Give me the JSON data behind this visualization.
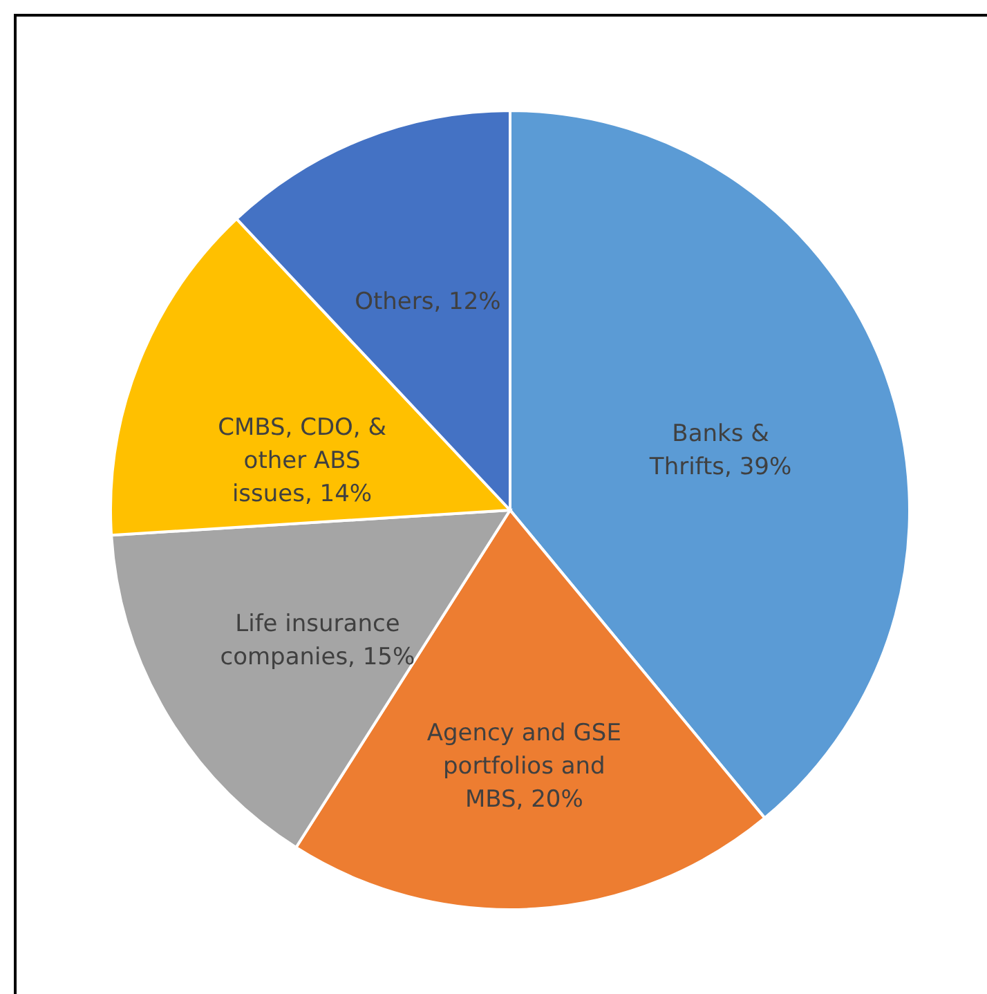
{
  "chart_data": {
    "type": "pie",
    "categories": [
      "Banks & Thrifts",
      "Agency and GSE portfolios and MBS",
      "Life insurance companies",
      "CMBS, CDO, & other ABS issues",
      "Others"
    ],
    "values": [
      39,
      20,
      15,
      14,
      12
    ],
    "value_labels": [
      "39%",
      "20%",
      "15%",
      "14%",
      "12%"
    ],
    "colors": [
      "#5b9bd5",
      "#ed7d31",
      "#a5a5a5",
      "#ffc000",
      "#4472c4"
    ],
    "legend": false
  }
}
